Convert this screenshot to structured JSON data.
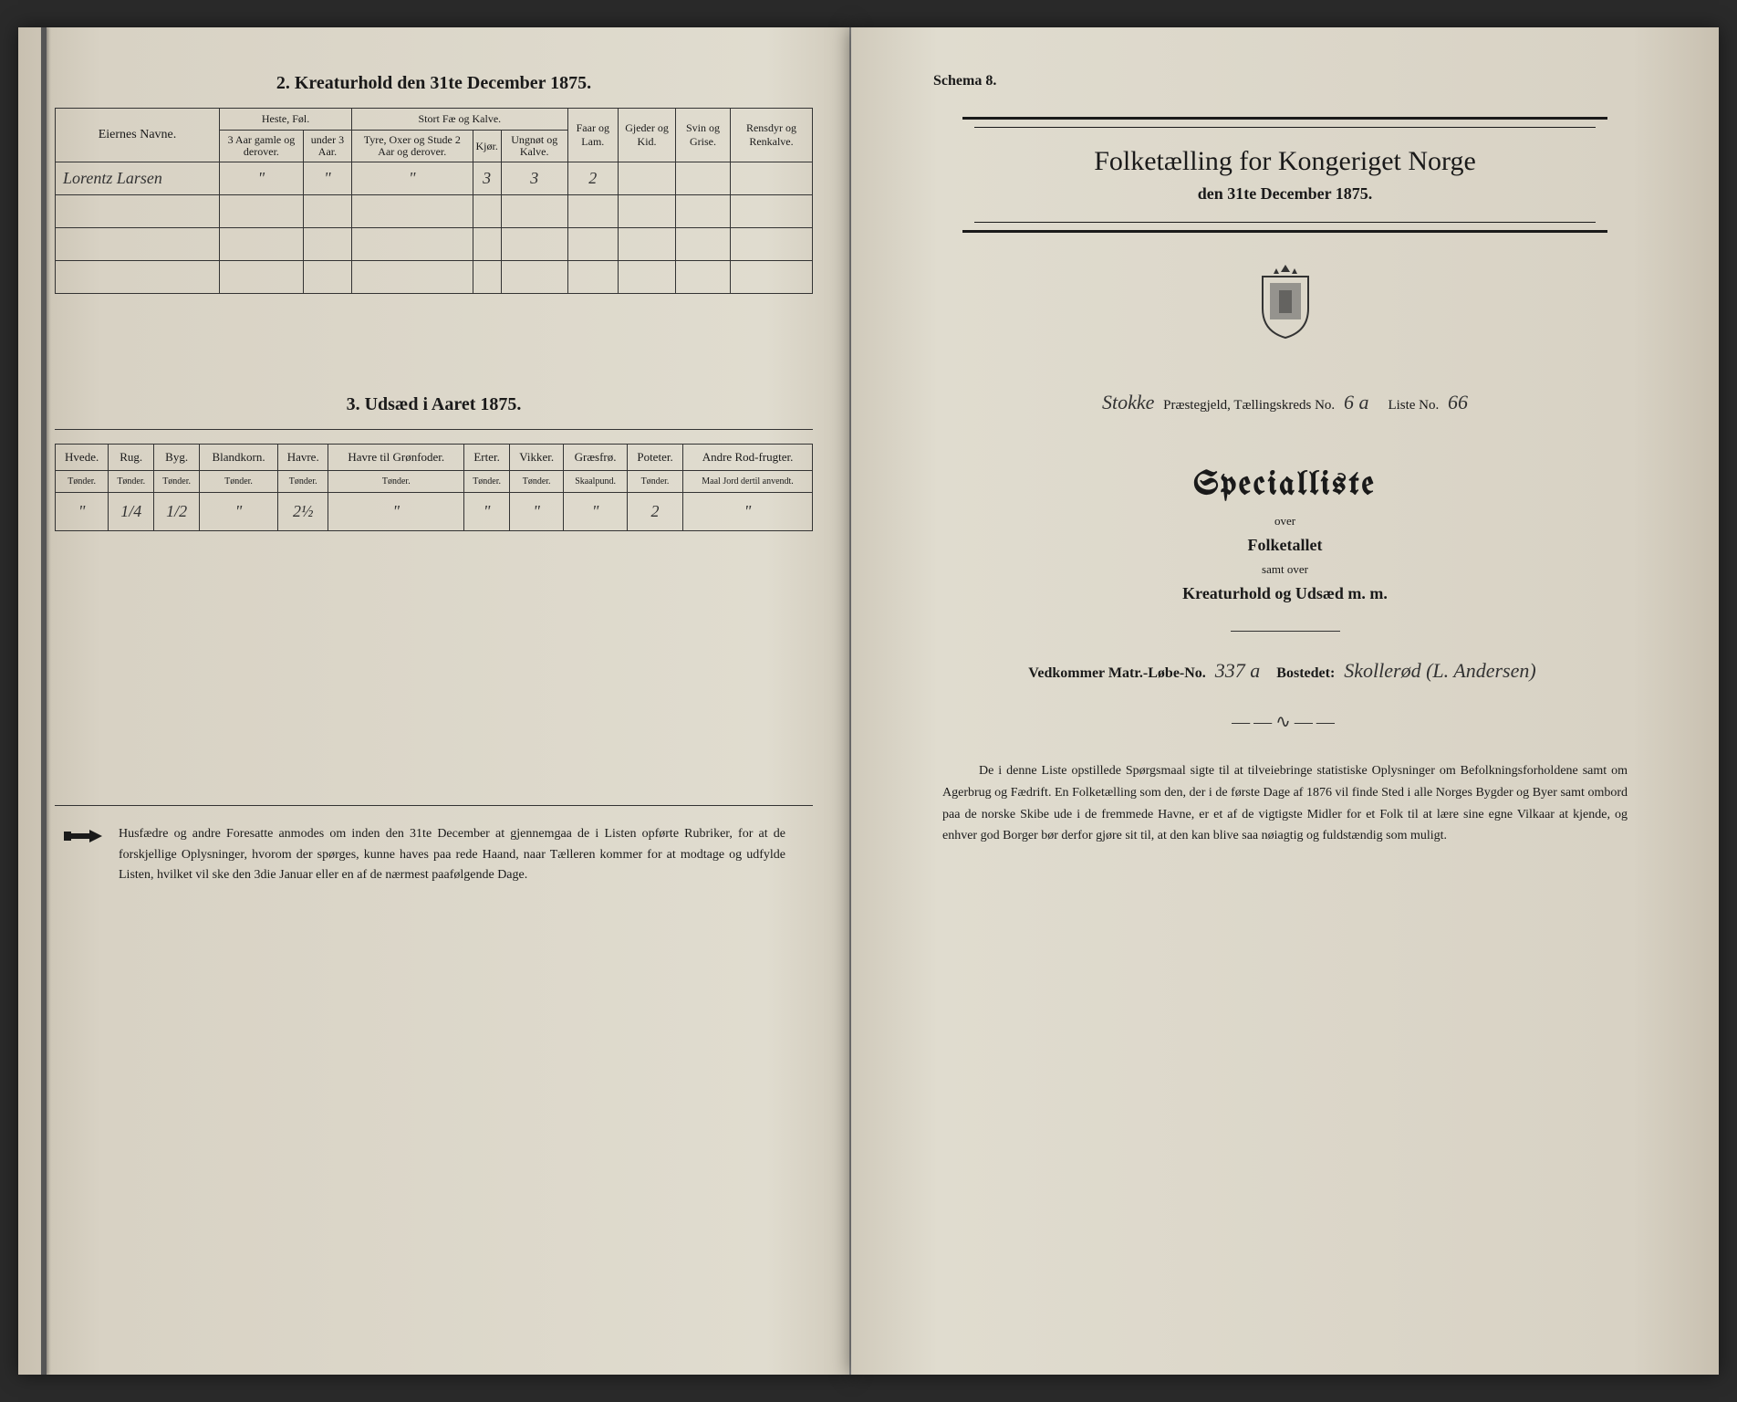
{
  "left": {
    "section2": {
      "title": "2.  Kreaturhold den 31te December 1875.",
      "headers": {
        "eier": "Eiernes Navne.",
        "heste": "Heste, Føl.",
        "stort": "Stort Fæ og Kalve.",
        "faar": "Faar og Lam.",
        "gjeder": "Gjeder og Kid.",
        "svin": "Svin og Grise.",
        "ren": "Rensdyr og Renkalve.",
        "sub": {
          "h1": "3 Aar gamle og derover.",
          "h2": "under 3 Aar.",
          "s1": "Tyre, Oxer og Stude 2 Aar og derover.",
          "s2": "Kjør.",
          "s3": "Ungnøt og Kalve."
        }
      },
      "row": {
        "navn": "Lorentz Larsen",
        "h1": "\"",
        "h2": "\"",
        "s1": "\"",
        "s2": "3",
        "s3": "3",
        "ung": "2",
        "faar": "",
        "gjed": "",
        "svin": "",
        "ren": ""
      }
    },
    "section3": {
      "title": "3.  Udsæd i Aaret 1875.",
      "cols": [
        {
          "h": "Hvede.",
          "u": "Tønder."
        },
        {
          "h": "Rug.",
          "u": "Tønder."
        },
        {
          "h": "Byg.",
          "u": "Tønder."
        },
        {
          "h": "Blandkorn.",
          "u": "Tønder."
        },
        {
          "h": "Havre.",
          "u": "Tønder."
        },
        {
          "h": "Havre til Grønfoder.",
          "u": "Tønder."
        },
        {
          "h": "Erter.",
          "u": "Tønder."
        },
        {
          "h": "Vikker.",
          "u": "Tønder."
        },
        {
          "h": "Græsfrø.",
          "u": "Skaalpund."
        },
        {
          "h": "Poteter.",
          "u": "Tønder."
        },
        {
          "h": "Andre Rod-frugter.",
          "u": "Maal Jord dertil anvendt."
        }
      ],
      "row": [
        "\"",
        "1/4",
        "1/2",
        "\"",
        "2½",
        "\"",
        "\"",
        "\"",
        "\"",
        "2",
        "\""
      ]
    },
    "footnote": "Husfædre og andre Foresatte anmodes om inden den 31te December at gjennemgaa de i Listen opførte Rubriker, for at de forskjellige Oplysninger, hvorom der spørges, kunne haves paa rede Haand, naar Tælleren kommer for at modtage og udfylde Listen, hvilket vil ske den 3die Januar eller en af de nærmest paafølgende Dage."
  },
  "right": {
    "schema": "Schema 8.",
    "title": "Folketælling for Kongeriget Norge",
    "subtitle": "den 31te December 1875.",
    "info": {
      "praestegjeld_label": "Stokke",
      "praestegjeld_suffix": "Præstegjeld, Tællingskreds No.",
      "kreds": "6 a",
      "liste_label": "Liste No.",
      "liste": "66"
    },
    "special": "Specialliste",
    "over1": "over",
    "folketallet": "Folketallet",
    "samt": "samt over",
    "kreatur": "Kreaturhold og Udsæd m. m.",
    "vedk": {
      "label1": "Vedkommer Matr.-Løbe-No.",
      "no": "337 a",
      "label2": "Bostedet:",
      "bosted": "Skollerød (L. Andersen)"
    },
    "body": "De i denne Liste opstillede Spørgsmaal sigte til at tilveiebringe statistiske Oplysninger om Befolkningsforholdene samt om Agerbrug og Fædrift.  En Folketælling som den, der i de første Dage af 1876 vil finde Sted i alle Norges Bygder og Byer samt ombord paa de norske Skibe ude i de fremmede Havne, er et af de vigtigste Midler for et Folk til at lære sine egne Vilkaar at kjende, og enhver god Borger bør derfor gjøre sit til, at den kan blive saa nøiagtig og fuldstændig som muligt."
  },
  "colors": {
    "ink": "#1a1a1a",
    "paper_left": "#e0dccf",
    "paper_right": "#e0dccf",
    "background": "#2a2a2a"
  }
}
